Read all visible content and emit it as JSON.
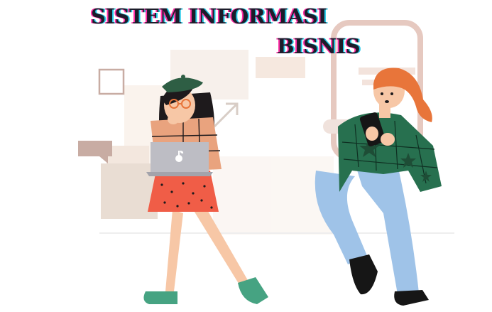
{
  "heading": {
    "line1": "SISTEM INFORMASI",
    "line2": "BISNIS"
  },
  "illustration": {
    "subjects": [
      "woman-with-laptop",
      "woman-with-phone"
    ],
    "colors": {
      "background": "#ffffff",
      "skin": "#f7c7a6",
      "hair_dark": "#1e1a1c",
      "hair_orange": "#e8753a",
      "beret": "#2e5e44",
      "skirt": "#f05d47",
      "sweater_green": "#27704f",
      "jeans": "#9fc3e8",
      "shoes_green": "#46a382",
      "shoes_black": "#161616",
      "laptop": "#bdbdc4",
      "phone_frame": "#e6c9c0",
      "accent_beige": "#e9ddd3",
      "accent_brown": "#c8aca3"
    },
    "icons": [
      "apple-logo-icon",
      "arrow-up-right-icon",
      "speech-bubble-icon"
    ]
  }
}
